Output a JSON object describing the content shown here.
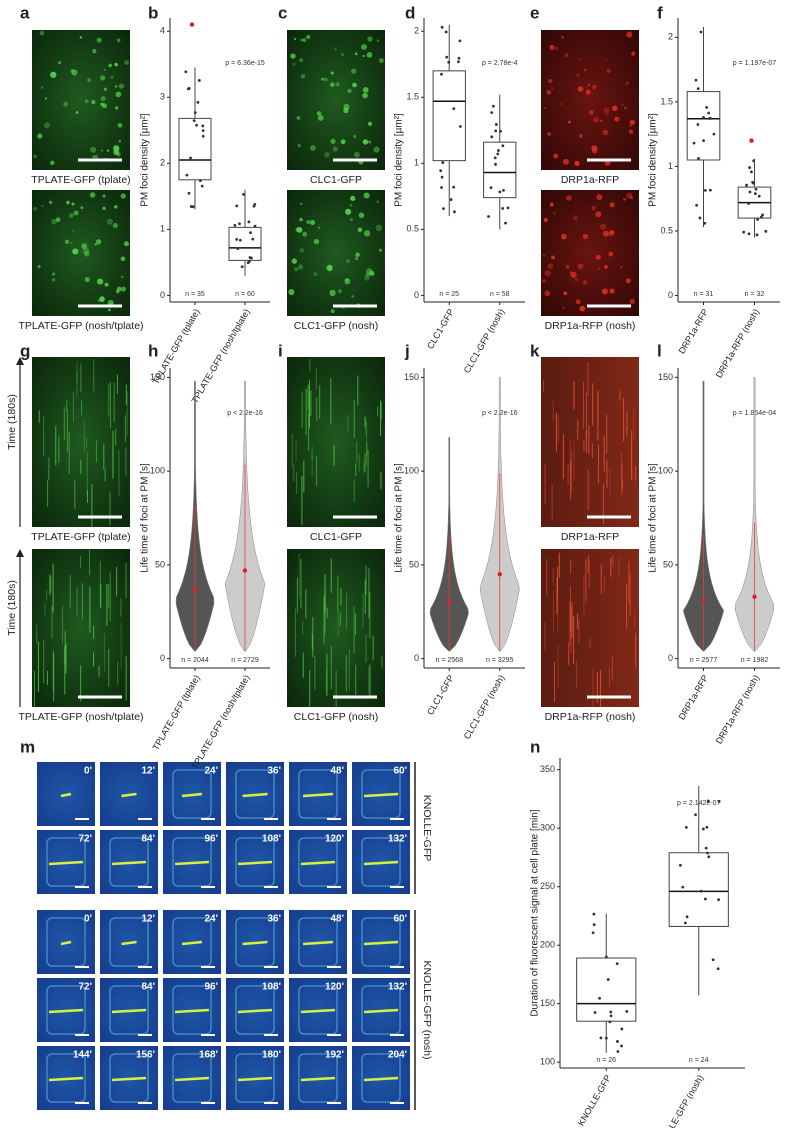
{
  "letters": [
    "a",
    "b",
    "c",
    "d",
    "e",
    "f",
    "g",
    "h",
    "i",
    "j",
    "k",
    "l",
    "m",
    "n"
  ],
  "images": [
    {
      "caption": "TPLATE-GFP (tplate)"
    },
    {
      "caption": "TPLATE-GFP (nosh/tplate)"
    },
    {
      "caption": "CLC1-GFP"
    },
    {
      "caption": "CLC1-GFP (nosh)"
    },
    {
      "caption": "DRP1a-RFP"
    },
    {
      "caption": "DRP1a-RFP (nosh)"
    },
    {
      "caption": "TPLATE-GFP (tplate)"
    },
    {
      "caption": "TPLATE-GFP (nosh/tplate)"
    },
    {
      "caption": "CLC1-GFP"
    },
    {
      "caption": "CLC1-GFP (nosh)"
    },
    {
      "caption": "DRP1a-RFP"
    },
    {
      "caption": "DRP1a-RFP (nosh)"
    }
  ],
  "time_axis": [
    "Time (180s)",
    "Time (180s)"
  ],
  "timelapse": {
    "groups": [
      {
        "label": "KNOLLE-GFP",
        "rows": [
          [
            "0'",
            "12'",
            "24'",
            "36'",
            "48'",
            "60'"
          ],
          [
            "72'",
            "84'",
            "96'",
            "108'",
            "120'",
            "132'"
          ]
        ]
      },
      {
        "label": "KNOLLE-GFP (nosh)",
        "rows": [
          [
            "0'",
            "12'",
            "24'",
            "36'",
            "48'",
            "60'"
          ],
          [
            "72'",
            "84'",
            "96'",
            "108'",
            "120'",
            "132'"
          ],
          [
            "144'",
            "156'",
            "168'",
            "180'",
            "192'",
            "204'"
          ]
        ]
      }
    ]
  },
  "chart_data": [
    {
      "type": "box",
      "ylabel": "PM foci density [µm²]",
      "categories": [
        "TPLATE-GFP (tplate)",
        "TPLATE-GFP (nosh/tplate)"
      ],
      "boxes": [
        {
          "min": 1.3,
          "q1": 1.75,
          "median": 2.05,
          "q3": 2.68,
          "max": 3.45,
          "outliers": [
            4.1
          ]
        },
        {
          "min": 0.3,
          "q1": 0.53,
          "median": 0.72,
          "q3": 1.03,
          "max": 1.6,
          "outliers": []
        }
      ],
      "n_labels": [
        "n = 35",
        "n = 60"
      ],
      "p_label": "p = 6.36e-15",
      "ylim": [
        -0.1,
        4.2
      ],
      "yticks": [
        0,
        1,
        2,
        3,
        4
      ]
    },
    {
      "type": "box",
      "ylabel": "PM foci density [µm²]",
      "categories": [
        "CLC1-GFP",
        "CLC1-GFP (nosh)"
      ],
      "boxes": [
        {
          "min": 0.6,
          "q1": 1.02,
          "median": 1.47,
          "q3": 1.7,
          "max": 2.05,
          "outliers": []
        },
        {
          "min": 0.5,
          "q1": 0.74,
          "median": 0.93,
          "q3": 1.16,
          "max": 1.52,
          "outliers": []
        }
      ],
      "n_labels": [
        "n = 25",
        "n = 58"
      ],
      "p_label": "p = 2.78e-4",
      "ylim": [
        -0.05,
        2.1
      ],
      "yticks": [
        0,
        0.5,
        1,
        1.5,
        2
      ]
    },
    {
      "type": "box",
      "ylabel": "PM foci density [µm²]",
      "categories": [
        "DRP1a-RFP",
        "DRP1a-RFP (nosh)"
      ],
      "boxes": [
        {
          "min": 0.53,
          "q1": 1.05,
          "median": 1.37,
          "q3": 1.58,
          "max": 2.08,
          "outliers": []
        },
        {
          "min": 0.45,
          "q1": 0.6,
          "median": 0.72,
          "q3": 0.84,
          "max": 1.06,
          "outliers": [
            1.2
          ]
        }
      ],
      "n_labels": [
        "n = 31",
        "n = 32"
      ],
      "p_label": "p = 1.197e-07",
      "ylim": [
        -0.05,
        2.15
      ],
      "yticks": [
        0,
        0.5,
        1,
        1.5,
        2
      ]
    },
    {
      "type": "violin",
      "ylabel": "Life time of foci at PM [s]",
      "categories": [
        "TPLATE-GFP (tplate)",
        "TPLATE-GFP (nosh/tplate)"
      ],
      "colors": [
        "#555555",
        "#cccccc"
      ],
      "means": [
        37,
        47
      ],
      "maxes": [
        148,
        148
      ],
      "n_labels": [
        "n = 2044",
        "n = 2729"
      ],
      "p_label": "p < 2.2e-16",
      "ylim": [
        -5,
        155
      ],
      "yticks": [
        0,
        50,
        100,
        150
      ]
    },
    {
      "type": "violin",
      "ylabel": "Life time of foci at PM [s]",
      "categories": [
        "CLC1-GFP",
        "CLC1-GFP (nosh)"
      ],
      "colors": [
        "#555555",
        "#cccccc"
      ],
      "means": [
        30,
        45
      ],
      "maxes": [
        118,
        150
      ],
      "n_labels": [
        "n = 2568",
        "n = 3295"
      ],
      "p_label": "p < 2.2e-16",
      "ylim": [
        -5,
        155
      ],
      "yticks": [
        0,
        50,
        100,
        150
      ]
    },
    {
      "type": "violin",
      "ylabel": "Life time of foci at PM [s]",
      "categories": [
        "DRP1a-RFP",
        "DRP1a-RFP (nosh)"
      ],
      "colors": [
        "#555555",
        "#cccccc"
      ],
      "means": [
        30,
        33
      ],
      "maxes": [
        148,
        150
      ],
      "n_labels": [
        "n = 2577",
        "n = 1982"
      ],
      "p_label": "p = 1.854e-04",
      "ylim": [
        -5,
        155
      ],
      "yticks": [
        0,
        50,
        100,
        150
      ]
    },
    {
      "type": "box",
      "ylabel": "Duration of fluorescent signal at cell plate [min]",
      "categories": [
        "KNOLLE-GFP",
        "KNOLLE-GFP (nosh)"
      ],
      "boxes": [
        {
          "min": 108,
          "q1": 135,
          "median": 150,
          "q3": 189,
          "max": 227,
          "outliers": []
        },
        {
          "min": 157,
          "q1": 216,
          "median": 246,
          "q3": 279,
          "max": 336,
          "outliers": []
        }
      ],
      "n_labels": [
        "n = 26",
        "n = 24"
      ],
      "p_label": "p = 2.142e-07",
      "ylim": [
        95,
        360
      ],
      "yticks": [
        100,
        150,
        200,
        250,
        300,
        350
      ]
    }
  ]
}
